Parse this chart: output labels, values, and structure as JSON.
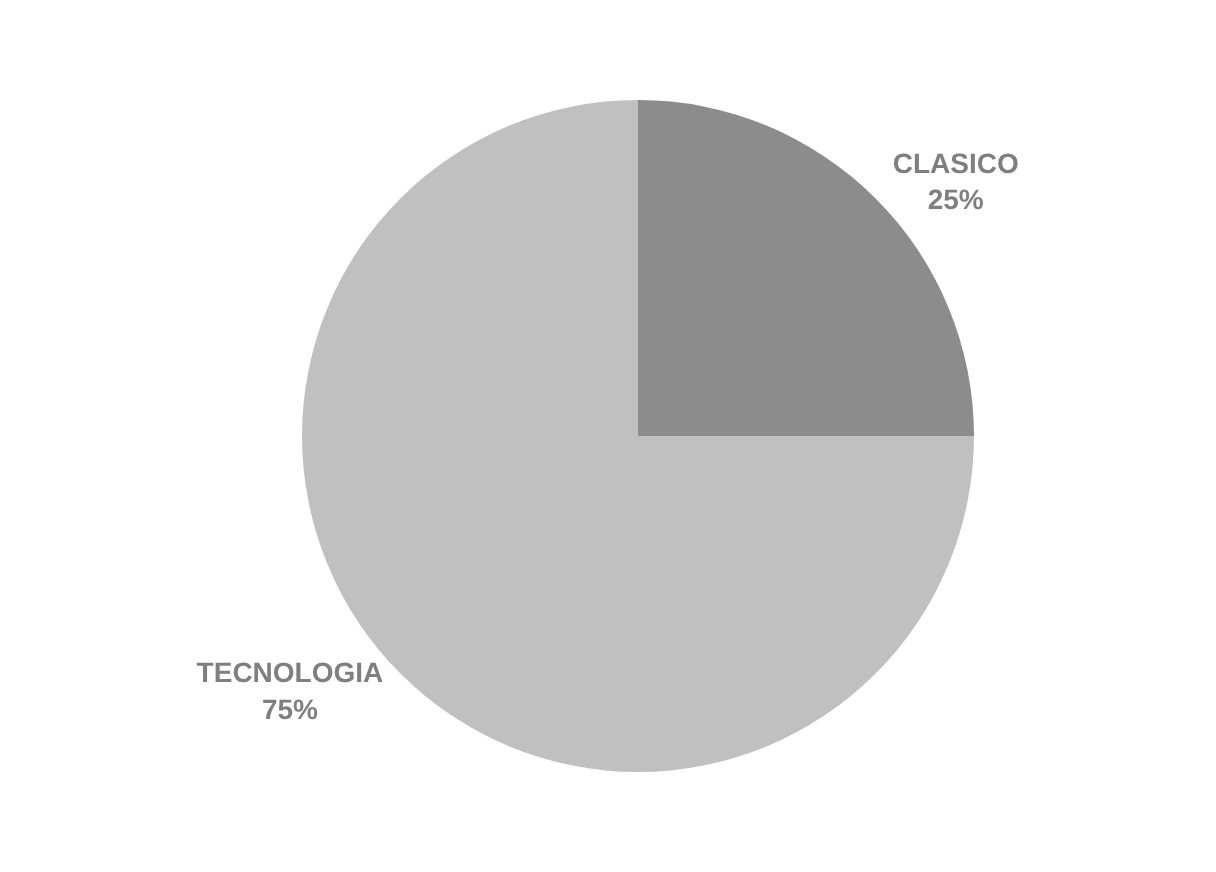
{
  "chart_data": {
    "type": "pie",
    "categories": [
      "CLASICO",
      "TECNOLOGIA"
    ],
    "values": [
      25,
      75
    ],
    "value_labels": [
      "25%",
      "75%"
    ],
    "colors": [
      "#8c8c8c",
      "#c0c0c0"
    ],
    "legend": false
  }
}
